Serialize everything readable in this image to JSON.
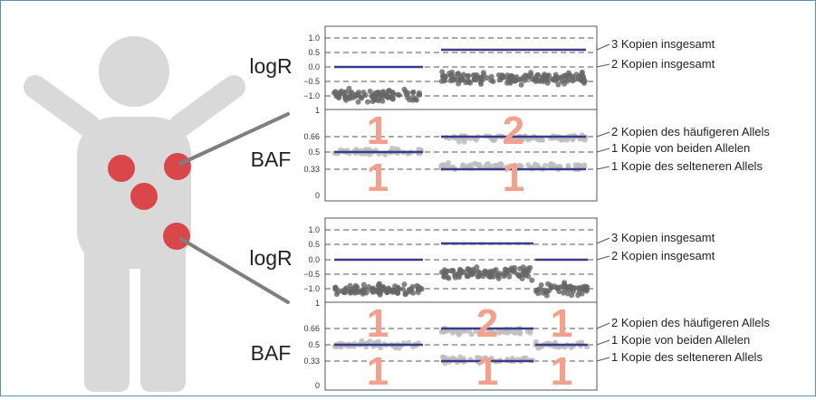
{
  "colors": {
    "frame": "#5b8fb9",
    "figure": "#d9d9d9",
    "tumor": "#d9474a",
    "pointer": "#7f7f7f",
    "mean_line": "#3b3a8c",
    "logr_points": "#666666",
    "baf_points": "#bdbdbd",
    "copy_number": "#f3a08c"
  },
  "icons": {
    "person": "person-silhouette-icon",
    "tumor": "tumor-spot-icon"
  },
  "panels": [
    {
      "logr": {
        "label": "logR",
        "ticks": [
          "1.0",
          "0.5",
          "0.0",
          "−0.5",
          "−1.0"
        ],
        "annotations": [
          "3 Kopien insgesamt",
          "2 Kopien insgesamt"
        ]
      },
      "baf": {
        "label": "BAF",
        "ticks": [
          "1",
          "0.66",
          "0.5",
          "0.33",
          "0"
        ],
        "annotations": [
          "2 Kopien des häufigeren Allels",
          "1 Kopie von beiden Allelen",
          "1 Kopie des selteneren Allels"
        ]
      },
      "segments": [
        {
          "logr_mean": 0.0,
          "baf_levels": [
            0.5
          ],
          "copy_major": "1",
          "copy_minor": "1"
        },
        {
          "logr_mean": 0.6,
          "baf_levels": [
            0.66,
            0.33
          ],
          "copy_major": "2",
          "copy_minor": "1"
        }
      ]
    },
    {
      "logr": {
        "label": "logR",
        "ticks": [
          "1.0",
          "0.5",
          "0.0",
          "−0.5",
          "−1.0"
        ],
        "annotations": [
          "3 Kopien insgesamt",
          "2 Kopien insgesamt"
        ]
      },
      "baf": {
        "label": "BAF",
        "ticks": [
          "1",
          "0.66",
          "0.5",
          "0.33",
          "0"
        ],
        "annotations": [
          "2 Kopien des häufigeren Allels",
          "1 Kopie von beiden Allelen",
          "1 Kopie des selteneren Allels"
        ]
      },
      "segments": [
        {
          "logr_mean": 0.0,
          "baf_levels": [
            0.5
          ],
          "copy_major": "1",
          "copy_minor": "1"
        },
        {
          "logr_mean": 0.55,
          "baf_levels": [
            0.66,
            0.33
          ],
          "copy_major": "2",
          "copy_minor": "1"
        },
        {
          "logr_mean": 0.0,
          "baf_levels": [
            0.5
          ],
          "copy_major": "1",
          "copy_minor": "1"
        }
      ]
    }
  ]
}
